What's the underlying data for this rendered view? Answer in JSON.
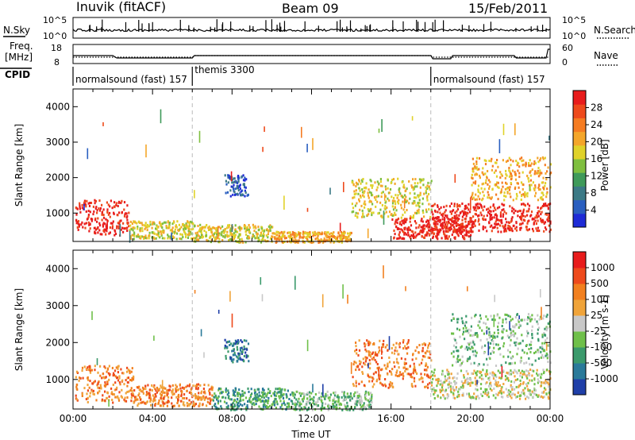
{
  "header": {
    "station": "Inuvik (fitACF)",
    "beam": "Beam 09",
    "date": "15/Feb/2011"
  },
  "status_panels": {
    "nsky_label": "N.Sky",
    "nsky_ticks": [
      "10^5",
      "10^0"
    ],
    "nsearch_label": "N.Search",
    "nsearch_ticks": [
      "10^5",
      "10^0"
    ],
    "freq_label": "Freq.",
    "freq_unit": "[MHz]",
    "freq_ticks": [
      "18",
      "8"
    ],
    "nave_label": "Nave",
    "nave_ticks": [
      "60",
      "0"
    ],
    "cpid_label": "CPID",
    "cpid_segments": [
      {
        "name": "normalsound (fast) 157",
        "start": 0,
        "end": 6
      },
      {
        "name": "themis 3300",
        "start": 6,
        "end": 18
      },
      {
        "name": "normalsound (fast) 157",
        "start": 18,
        "end": 24
      }
    ]
  },
  "chart_data": [
    {
      "type": "heatmap",
      "panel": "power",
      "title": "",
      "xlabel": "",
      "ylabel": "Slant Range [km]",
      "xlim": [
        0,
        24
      ],
      "ylim": [
        200,
        4500
      ],
      "x_ticks": [
        "00:00",
        "04:00",
        "08:00",
        "12:00",
        "16:00",
        "20:00",
        "00:00"
      ],
      "y_ticks": [
        1000,
        2000,
        3000,
        4000
      ],
      "colorbar": {
        "label": "Power [dB]",
        "ticks": [
          "4",
          "8",
          "12",
          "16",
          "20",
          "24",
          "28"
        ],
        "colors": [
          "#1e2bd6",
          "#2a5fc0",
          "#3c7a86",
          "#3f9a5a",
          "#7fbf3f",
          "#e0d22a",
          "#f4a62a",
          "#f57c22",
          "#ee4a1c",
          "#e81c1c"
        ]
      },
      "features": [
        {
          "t0": 0.1,
          "t1": 2.8,
          "r0": 400,
          "r1": 1400,
          "level": 9
        },
        {
          "t0": 2.8,
          "t1": 6.0,
          "r0": 300,
          "r1": 800,
          "level": 5
        },
        {
          "t0": 6.0,
          "t1": 10.0,
          "r0": 200,
          "r1": 700,
          "level": 5
        },
        {
          "t0": 7.6,
          "t1": 8.8,
          "r0": 1500,
          "r1": 2100,
          "level": 1
        },
        {
          "t0": 10.0,
          "t1": 14.0,
          "r0": 200,
          "r1": 500,
          "level": 6
        },
        {
          "t0": 14.0,
          "t1": 18.0,
          "r0": 900,
          "r1": 2000,
          "level": 5
        },
        {
          "t0": 16.0,
          "t1": 20.0,
          "r0": 300,
          "r1": 900,
          "level": 9
        },
        {
          "t0": 18.0,
          "t1": 24.0,
          "r0": 500,
          "r1": 1300,
          "level": 9
        },
        {
          "t0": 20.0,
          "t1": 24.0,
          "r0": 1400,
          "r1": 2600,
          "level": 6
        }
      ]
    },
    {
      "type": "heatmap",
      "panel": "velocity",
      "title": "",
      "xlabel": "Time UT",
      "ylabel": "Slant Range [km]",
      "xlim": [
        0,
        24
      ],
      "ylim": [
        200,
        4500
      ],
      "x_ticks": [
        "00:00",
        "04:00",
        "08:00",
        "12:00",
        "16:00",
        "20:00",
        "00:00"
      ],
      "y_ticks": [
        1000,
        2000,
        3000,
        4000
      ],
      "colorbar": {
        "label": "Velocity [m s-1]",
        "ticks": [
          "1000",
          "500",
          "100",
          "25",
          "-25",
          "-100",
          "-500",
          "-1000"
        ],
        "colors": [
          "#1f3fa8",
          "#2a7a9a",
          "#3b9a6c",
          "#6fc04a",
          "#c8c8c8",
          "#f0a43a",
          "#f2801f",
          "#ee4a1c",
          "#e81c1c"
        ]
      },
      "features": [
        {
          "t0": 0.1,
          "t1": 3.0,
          "r0": 400,
          "r1": 1400,
          "level": 6
        },
        {
          "t0": 3.0,
          "t1": 7.0,
          "r0": 300,
          "r1": 900,
          "level": 6
        },
        {
          "t0": 7.0,
          "t1": 11.0,
          "r0": 200,
          "r1": 800,
          "level": 2
        },
        {
          "t0": 7.6,
          "t1": 8.8,
          "r0": 1500,
          "r1": 2100,
          "level": 1
        },
        {
          "t0": 11.0,
          "t1": 15.0,
          "r0": 200,
          "r1": 700,
          "level": 3
        },
        {
          "t0": 14.0,
          "t1": 18.0,
          "r0": 800,
          "r1": 2100,
          "level": 6
        },
        {
          "t0": 18.0,
          "t1": 24.0,
          "r0": 500,
          "r1": 1300,
          "level": 4
        },
        {
          "t0": 19.0,
          "t1": 24.0,
          "r0": 1400,
          "r1": 2800,
          "level": 3
        }
      ]
    }
  ]
}
